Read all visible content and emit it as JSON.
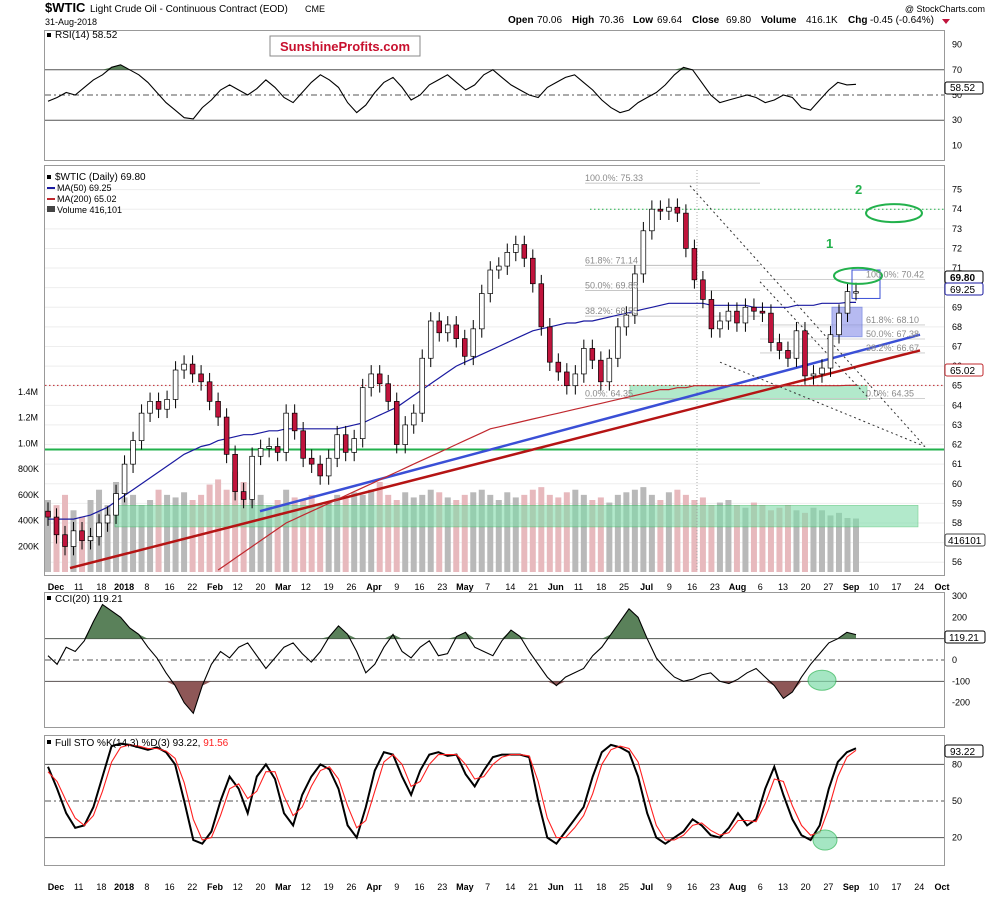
{
  "header": {
    "symbol": "$WTIC",
    "name": "Light Crude Oil - Continuous Contract (EOD)",
    "exchange": "CME",
    "date": "31-Aug-2018",
    "open_label": "Open",
    "open": "70.06",
    "high_label": "High",
    "high": "70.36",
    "low_label": "Low",
    "low": "69.64",
    "close_label": "Close",
    "close": "69.80",
    "volume_label": "Volume",
    "volume": "416.1K",
    "chg_label": "Chg",
    "chg": "-0.45 (-0.64%)",
    "credit": "@ StockCharts.com",
    "watermark": "SunshineProfits.com"
  },
  "colors": {
    "up_candle": "#ffffff",
    "down_candle": "#c0143c",
    "ma50": "#1a1aa0",
    "ma200": "#c0282e",
    "support_green": "#22b14c",
    "trend_blue": "#3a4fd6",
    "trend_red": "#b51414",
    "zone_fill": "#7fdcaa",
    "overbought_fill": "#3d6b3d",
    "oversold_fill": "#7a3a3a"
  },
  "chart_data": [
    {
      "type": "line",
      "title": "RSI(14) 58.52",
      "y_ticks": [
        "90",
        "70",
        "50",
        "30",
        "10"
      ],
      "ylim": [
        0,
        100
      ],
      "last_value": 58.52,
      "last_label": "58.52",
      "levels": [
        70,
        50,
        30
      ],
      "values": [
        45,
        48,
        52,
        50,
        56,
        62,
        66,
        72,
        74,
        70,
        66,
        60,
        52,
        44,
        38,
        32,
        31,
        40,
        46,
        54,
        58,
        54,
        50,
        55,
        62,
        56,
        48,
        44,
        52,
        60,
        66,
        62,
        56,
        44,
        36,
        42,
        52,
        60,
        64,
        56,
        46,
        50,
        58,
        62,
        66,
        60,
        54,
        58,
        66,
        70,
        64,
        58,
        54,
        50,
        48,
        56,
        60,
        64,
        66,
        60,
        54,
        46,
        40,
        36,
        38,
        44,
        48,
        52,
        58,
        66,
        72,
        70,
        60,
        50,
        44,
        46,
        48,
        50,
        48,
        44,
        46,
        50,
        48,
        40,
        38,
        46,
        54,
        60,
        58,
        58.52
      ]
    },
    {
      "type": "candlestick",
      "title": "$WTIC (Daily) 69.80",
      "legend": [
        {
          "label": "MA(50) 69.25",
          "color": "#1a1aa0"
        },
        {
          "label": "MA(200) 65.02",
          "color": "#c0282e"
        },
        {
          "label": "Volume 416,101",
          "color": "#444444"
        }
      ],
      "y_ticks": [
        "75",
        "74",
        "73",
        "72",
        "71",
        "70",
        "69",
        "68",
        "67",
        "66",
        "65",
        "64",
        "63",
        "62",
        "61",
        "60",
        "59",
        "58",
        "57",
        "56"
      ],
      "ylim": [
        55.5,
        76
      ],
      "volume_ticks": [
        "1.4M",
        "1.2M",
        "1.0M",
        "800K",
        "600K",
        "400K",
        "200K"
      ],
      "x_labels": [
        "Dec",
        "11",
        "18",
        "2018",
        "8",
        "16",
        "22",
        "Feb",
        "12",
        "20",
        "Mar",
        "12",
        "19",
        "26",
        "Apr",
        "9",
        "16",
        "23",
        "May",
        "7",
        "14",
        "21",
        "Jun",
        "11",
        "18",
        "25",
        "Jul",
        "9",
        "16",
        "23",
        "Aug",
        "6",
        "13",
        "20",
        "27",
        "Sep",
        "10",
        "17",
        "24",
        "Oct"
      ],
      "close_tag": "69.80",
      "ma50_tag": "69.25",
      "ma200_tag": "65.02",
      "volume_tag": "416101",
      "fib_upper": [
        {
          "label": "100.0%: 75.33",
          "value": 75.33
        },
        {
          "label": "61.8%: 71.14",
          "value": 71.14
        },
        {
          "label": "50.0%: 69.85",
          "value": 69.85
        },
        {
          "label": "38.2%: 68.55",
          "value": 68.55
        },
        {
          "label": "0.0%: 64.35",
          "value": 64.35
        }
      ],
      "fib_lower": [
        {
          "label": "100.0%: 70.42",
          "value": 70.42
        },
        {
          "label": "61.8%: 68.10",
          "value": 68.1
        },
        {
          "label": "50.0%: 67.38",
          "value": 67.38
        },
        {
          "label": "38.2%: 66.67",
          "value": 66.67
        },
        {
          "label": "0.0%: 64.35",
          "value": 64.35
        }
      ],
      "annotations": [
        "1",
        "2"
      ],
      "closes": [
        58.3,
        57.4,
        56.8,
        57.6,
        57.1,
        57.3,
        58.0,
        58.4,
        59.5,
        61.0,
        62.2,
        63.6,
        64.2,
        63.8,
        64.3,
        65.8,
        66.1,
        65.6,
        65.2,
        64.2,
        63.4,
        61.5,
        59.6,
        59.2,
        61.4,
        61.8,
        61.9,
        61.6,
        63.6,
        62.7,
        61.3,
        61.0,
        60.4,
        61.3,
        62.5,
        61.6,
        62.3,
        64.9,
        65.6,
        65.1,
        64.2,
        62.0,
        63.0,
        63.6,
        66.4,
        68.3,
        67.7,
        68.1,
        67.4,
        66.5,
        67.9,
        69.7,
        70.9,
        71.1,
        71.8,
        72.2,
        71.5,
        70.2,
        68.0,
        66.2,
        65.7,
        65.0,
        65.6,
        66.9,
        66.3,
        65.2,
        66.4,
        68.0,
        68.6,
        70.7,
        72.9,
        74.0,
        73.9,
        74.1,
        73.8,
        72.0,
        70.4,
        69.4,
        67.9,
        68.3,
        68.8,
        68.2,
        69.0,
        68.8,
        68.7,
        67.2,
        66.8,
        66.4,
        67.8,
        65.5,
        65.6,
        65.9,
        67.6,
        68.7,
        69.8,
        69.8
      ],
      "ma50": [
        58.2,
        58.2,
        58.2,
        58.2,
        58.3,
        58.4,
        58.6,
        58.8,
        59.1,
        59.4,
        59.7,
        60.0,
        60.3,
        60.6,
        60.9,
        61.2,
        61.5,
        61.7,
        61.9,
        62.0,
        62.2,
        62.3,
        62.4,
        62.5,
        62.5,
        62.6,
        62.7,
        62.7,
        62.8,
        62.8,
        62.8,
        62.8,
        62.8,
        62.8,
        62.8,
        62.9,
        63.0,
        63.1,
        63.3,
        63.5,
        63.7,
        63.9,
        64.2,
        64.5,
        64.8,
        65.1,
        65.4,
        65.7,
        66.0,
        66.2,
        66.4,
        66.6,
        66.8,
        67.0,
        67.2,
        67.4,
        67.6,
        67.8,
        67.9,
        68.0,
        68.1,
        68.2,
        68.2,
        68.3,
        68.3,
        68.4,
        68.5,
        68.6,
        68.7,
        68.8,
        68.9,
        69.0,
        69.1,
        69.2,
        69.2,
        69.2,
        69.2,
        69.2,
        69.1,
        69.1,
        69.1,
        69.1,
        69.1,
        69.0,
        69.0,
        69.0,
        69.0,
        69.0,
        69.1,
        69.1,
        69.1,
        69.2,
        69.2,
        69.2,
        69.25,
        69.25
      ],
      "ma200_start_index": 20,
      "ma200": [
        55.6,
        55.9,
        56.2,
        56.5,
        56.8,
        57.1,
        57.4,
        57.7,
        58.0,
        58.2,
        58.4,
        58.6,
        58.8,
        59.0,
        59.2,
        59.4,
        59.6,
        59.8,
        60.0,
        60.2,
        60.4,
        60.6,
        60.8,
        61.0,
        61.2,
        61.4,
        61.6,
        61.8,
        62.0,
        62.2,
        62.4,
        62.6,
        62.8,
        62.9,
        63.0,
        63.1,
        63.2,
        63.3,
        63.4,
        63.5,
        63.6,
        63.7,
        63.8,
        63.9,
        64.0,
        64.1,
        64.2,
        64.3,
        64.4,
        64.5,
        64.6,
        64.7,
        64.8,
        64.8,
        64.9,
        64.9,
        65.0,
        65.0,
        65.0,
        65.0,
        65.0,
        65.0,
        65.0,
        65.0,
        65.0,
        65.0,
        65.0,
        65.0,
        65.0,
        65.0,
        65.0,
        65.0,
        65.0,
        65.0,
        65.02,
        65.02
      ],
      "volume_k": [
        560,
        520,
        600,
        480,
        430,
        560,
        640,
        520,
        700,
        580,
        600,
        520,
        560,
        640,
        600,
        580,
        620,
        560,
        600,
        680,
        720,
        640,
        780,
        700,
        560,
        600,
        520,
        560,
        640,
        580,
        560,
        600,
        520,
        540,
        600,
        580,
        620,
        600,
        640,
        700,
        600,
        560,
        620,
        580,
        600,
        640,
        620,
        580,
        560,
        600,
        620,
        640,
        600,
        560,
        620,
        580,
        600,
        640,
        660,
        600,
        580,
        620,
        640,
        600,
        560,
        580,
        540,
        600,
        620,
        640,
        660,
        600,
        560,
        620,
        640,
        600,
        560,
        580,
        520,
        540,
        560,
        520,
        500,
        540,
        520,
        480,
        500,
        520,
        480,
        460,
        500,
        480,
        440,
        460,
        420,
        416
      ]
    },
    {
      "type": "line",
      "title": "CCI(20) 119.21",
      "y_ticks": [
        "300",
        "200",
        "100",
        "0",
        "-100",
        "-200"
      ],
      "ylim": [
        -300,
        300
      ],
      "last_value": 119.21,
      "last_label": "119.21",
      "values": [
        20,
        -20,
        60,
        40,
        90,
        180,
        260,
        230,
        200,
        150,
        120,
        60,
        10,
        -60,
        -120,
        -200,
        -250,
        -120,
        -20,
        40,
        10,
        60,
        80,
        20,
        -40,
        10,
        60,
        80,
        30,
        -10,
        40,
        110,
        160,
        120,
        40,
        -60,
        -20,
        60,
        120,
        40,
        10,
        60,
        90,
        20,
        30,
        110,
        130,
        60,
        40,
        20,
        90,
        140,
        110,
        40,
        -20,
        -80,
        -120,
        -80,
        -60,
        -40,
        20,
        60,
        120,
        180,
        240,
        200,
        100,
        10,
        -40,
        -80,
        -100,
        -90,
        -70,
        -60,
        -100,
        -110,
        -90,
        -60,
        -40,
        -80,
        -120,
        -180,
        -150,
        -80,
        -20,
        30,
        80,
        100,
        130,
        119.21
      ]
    },
    {
      "type": "line",
      "title": "Full STO %K(14,3) %D(3) 93.22, 91.56",
      "k_label": "Full STO %K(14,3) %D(3) 93.22,",
      "d_label": "91.56",
      "y_ticks": [
        "80",
        "50",
        "20"
      ],
      "ylim": [
        0,
        100
      ],
      "last_value": 93.22,
      "last_label": "93.22",
      "series": [
        {
          "name": "%K",
          "color": "#000000",
          "values": [
            78,
            60,
            40,
            28,
            30,
            45,
            70,
            95,
            97,
            96,
            94,
            92,
            94,
            90,
            80,
            50,
            18,
            15,
            25,
            50,
            70,
            60,
            40,
            70,
            80,
            68,
            40,
            30,
            55,
            70,
            80,
            76,
            60,
            30,
            20,
            45,
            75,
            90,
            88,
            70,
            55,
            75,
            88,
            90,
            87,
            88,
            72,
            62,
            75,
            86,
            88,
            88,
            88,
            86,
            50,
            20,
            15,
            25,
            35,
            45,
            70,
            90,
            96,
            94,
            90,
            70,
            40,
            20,
            15,
            20,
            25,
            35,
            30,
            22,
            20,
            28,
            40,
            30,
            35,
            60,
            78,
            55,
            35,
            22,
            18,
            30,
            60,
            82,
            90,
            93.22
          ]
        },
        {
          "name": "%D",
          "color": "#ff2020",
          "values": [
            74,
            66,
            50,
            36,
            30,
            38,
            58,
            82,
            94,
            96,
            95,
            93,
            93,
            91,
            85,
            65,
            35,
            18,
            20,
            38,
            60,
            64,
            52,
            58,
            74,
            74,
            54,
            38,
            45,
            62,
            75,
            78,
            68,
            46,
            28,
            34,
            58,
            82,
            88,
            80,
            62,
            66,
            80,
            88,
            88,
            88,
            80,
            68,
            70,
            80,
            86,
            88,
            88,
            87,
            66,
            36,
            20,
            20,
            28,
            38,
            56,
            80,
            92,
            95,
            93,
            82,
            55,
            30,
            18,
            18,
            22,
            30,
            32,
            26,
            22,
            24,
            34,
            34,
            33,
            48,
            68,
            66,
            46,
            30,
            22,
            24,
            44,
            70,
            86,
            91.56
          ]
        }
      ]
    }
  ]
}
